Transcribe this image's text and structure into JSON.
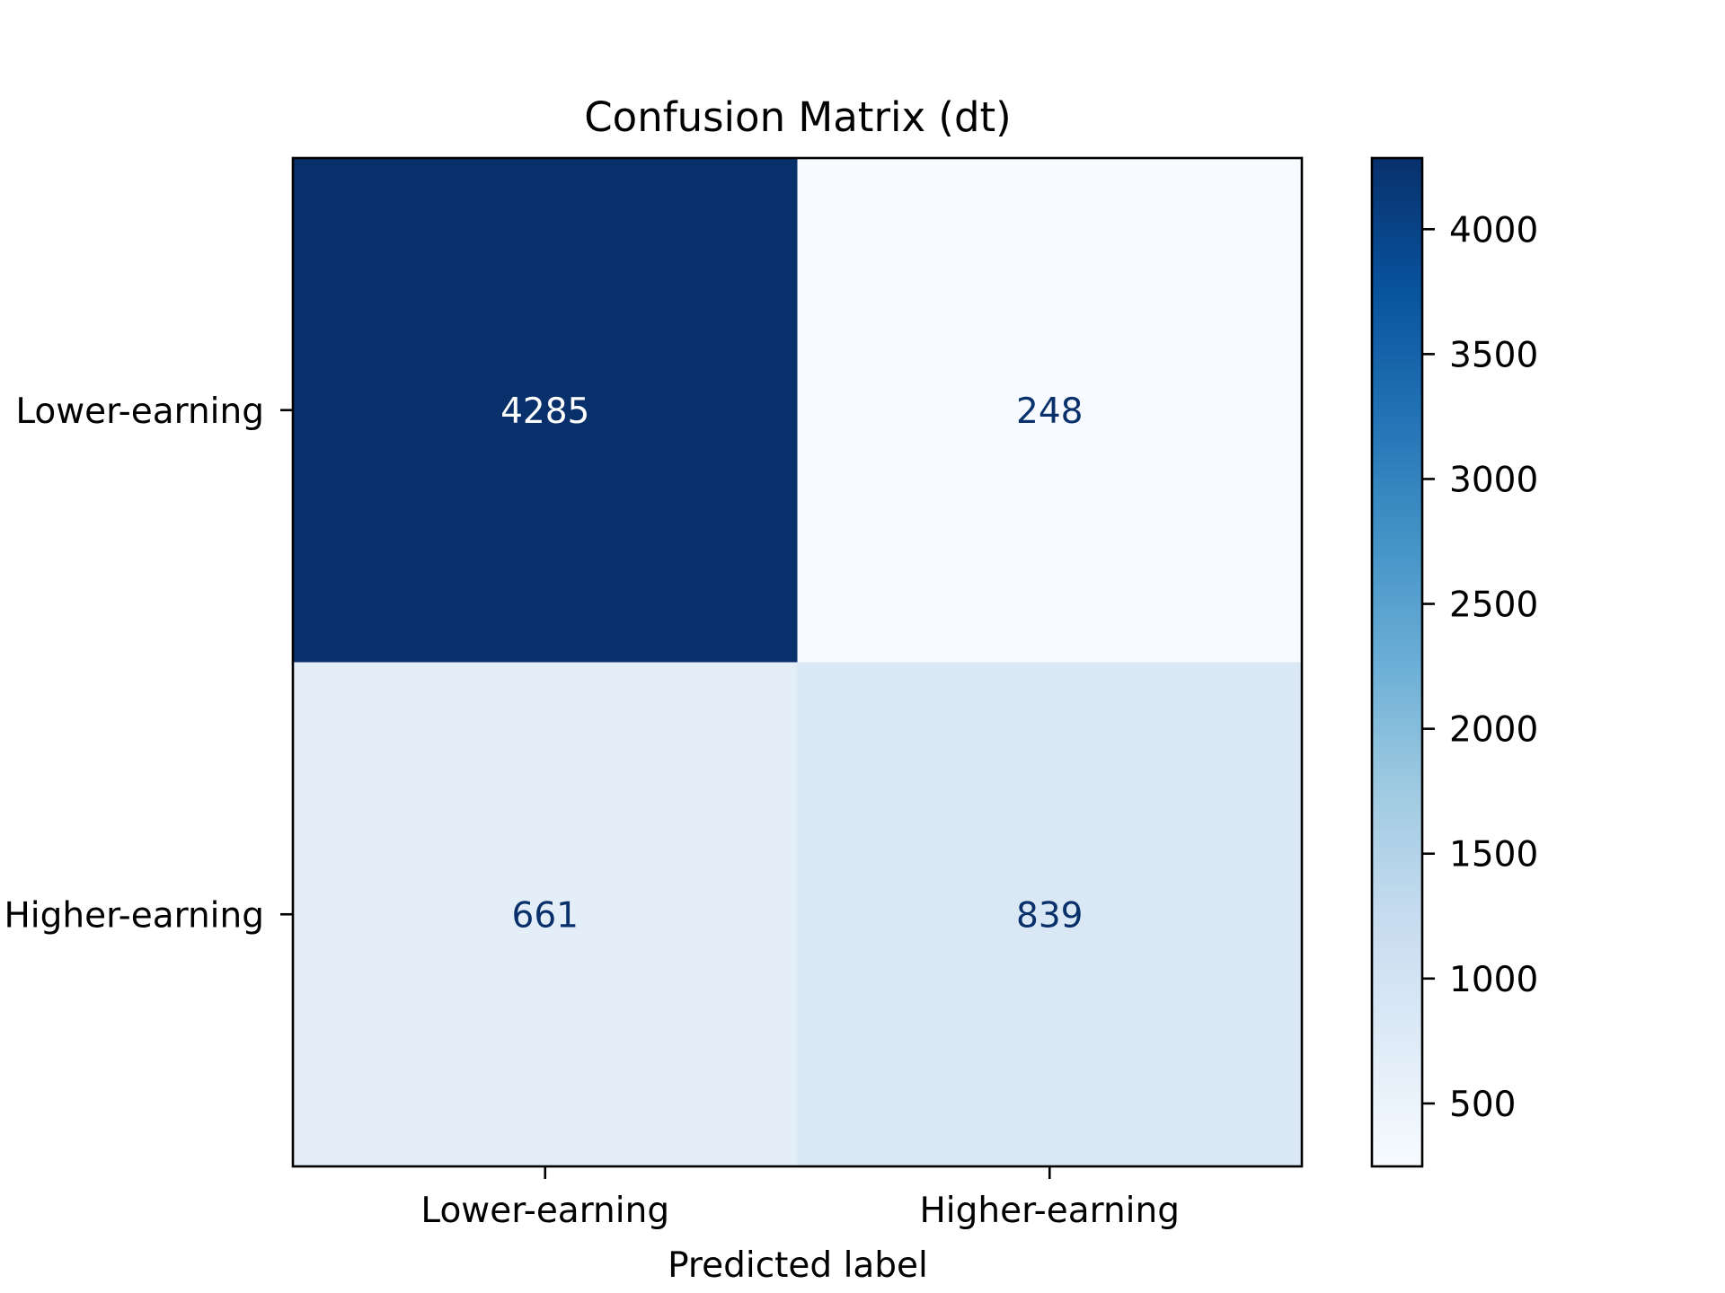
{
  "chart_data": {
    "type": "heatmap",
    "title": "Confusion Matrix (dt)",
    "xlabel": "Predicted label",
    "ylabel": "",
    "x_categories": [
      "Lower-earning",
      "Higher-earning"
    ],
    "y_categories": [
      "Lower-earning",
      "Higher-earning"
    ],
    "values": [
      [
        4285,
        248
      ],
      [
        661,
        839
      ]
    ],
    "colormap": "Blues",
    "color_range": [
      248,
      4285
    ],
    "colorbar": {
      "ticks": [
        500,
        1000,
        1500,
        2000,
        2500,
        3000,
        3500,
        4000
      ],
      "tick_labels": [
        "500",
        "1000",
        "1500",
        "2000",
        "2500",
        "3000",
        "3500",
        "4000"
      ]
    },
    "cell_text_colors": {
      "dark": "#ffffff",
      "light": "#08306b"
    }
  }
}
